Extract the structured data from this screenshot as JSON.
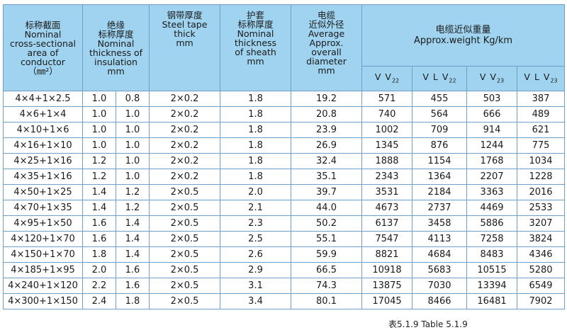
{
  "header": {
    "cross_section": [
      "标称截面",
      "Nominal",
      "cross-sectional",
      "area of",
      "conductor",
      "（㎜²）"
    ],
    "insulation": [
      "绝缘",
      "标称厚度",
      "Nominal",
      "thickness of",
      "insulation",
      "mm"
    ],
    "steel_tape": [
      "钢带厚度",
      "Steel tape",
      "thick",
      "mm"
    ],
    "sheath": [
      "护套",
      "标称厚度",
      "Nominal",
      "thickness",
      "of sheath",
      "mm"
    ],
    "diameter": [
      "电缆",
      "近似外径",
      "Average",
      "Approx.",
      "overall",
      "diameter",
      "mm"
    ],
    "weight_cn": "电缆近似重量",
    "weight_en": "Approx.weight  Kg/km",
    "sub_columns": [
      {
        "main": "V V",
        "sub": "22"
      },
      {
        "main": "V L V",
        "sub": "22"
      },
      {
        "main": "V V",
        "sub": "23"
      },
      {
        "main": "V L V",
        "sub": "23"
      }
    ]
  },
  "rows": [
    [
      "4×4+1×2.5",
      "1.0",
      "0.8",
      "2×0.2",
      "1.8",
      "19.2",
      "571",
      "455",
      "503",
      "387"
    ],
    [
      "4×6+1×4",
      "1.0",
      "1.0",
      "2×0.2",
      "1.8",
      "20.8",
      "740",
      "564",
      "666",
      "489"
    ],
    [
      "4×10+1×6",
      "1.0",
      "1.0",
      "2×0.2",
      "1.8",
      "23.9",
      "1002",
      "709",
      "914",
      "621"
    ],
    [
      "4×16+1×10",
      "1.0",
      "1.0",
      "2×0.2",
      "1.8",
      "26.9",
      "1345",
      "876",
      "1244",
      "775"
    ],
    [
      "4×25+1×16",
      "1.2",
      "1.0",
      "2×0.2",
      "1.8",
      "32.4",
      "1888",
      "1154",
      "1768",
      "1034"
    ],
    [
      "4×35+1×16",
      "1.2",
      "1.0",
      "2×0.2",
      "1.8",
      "35.1",
      "2343",
      "1364",
      "2207",
      "1228"
    ],
    [
      "4×50+1×25",
      "1.4",
      "1.2",
      "2×0.5",
      "2.0",
      "39.7",
      "3531",
      "2184",
      "3363",
      "2016"
    ],
    [
      "4×70+1×35",
      "1.4",
      "1.2",
      "2×0.5",
      "2.1",
      "44.0",
      "4673",
      "2737",
      "4469",
      "2533"
    ],
    [
      "4×95+1×50",
      "1.6",
      "1.4",
      "2×0.5",
      "2.3",
      "50.2",
      "6137",
      "3458",
      "5886",
      "3207"
    ],
    [
      "4×120+1×70",
      "1.6",
      "1.4",
      "2×0.5",
      "2.5",
      "55.1",
      "7547",
      "4113",
      "7258",
      "3824"
    ],
    [
      "4×150+1×70",
      "1.8",
      "1.4",
      "2×0.5",
      "2.6",
      "59.9",
      "8821",
      "4684",
      "8483",
      "4346"
    ],
    [
      "4×185+1×95",
      "2.0",
      "1.6",
      "2×0.5",
      "2.9",
      "66.5",
      "10918",
      "5683",
      "10515",
      "5280"
    ],
    [
      "4×240+1×120",
      "2.2",
      "1.6",
      "2×0.5",
      "3.1",
      "74.3",
      "13875",
      "7030",
      "13394",
      "6549"
    ],
    [
      "4×300+1×150",
      "2.4",
      "1.8",
      "2×0.5",
      "3.4",
      "80.1",
      "17045",
      "8466",
      "16481",
      "7902"
    ]
  ],
  "caption": "表5.1.9 Table 5.1.9"
}
